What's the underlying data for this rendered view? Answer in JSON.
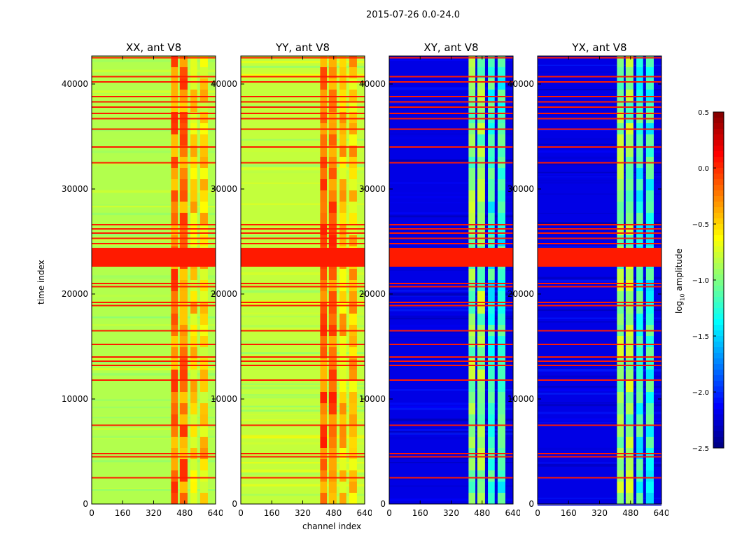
{
  "chart_data": {
    "type": "heatmap",
    "title": "2015-07-26 0.0-24.0",
    "xlabel": "channel index",
    "ylabel": "time index",
    "xlim": [
      0,
      640
    ],
    "ylim": [
      0,
      42667
    ],
    "xticks": [
      "0",
      "160",
      "320",
      "480",
      "640"
    ],
    "yticks": [
      "0",
      "10000",
      "20000",
      "30000",
      "40000"
    ],
    "panels": [
      {
        "title": "XX, ant V8",
        "base_log_amp": -0.85,
        "rfi_log_amp": -0.4
      },
      {
        "title": "YY, ant V8",
        "base_log_amp": -0.8,
        "rfi_log_amp": -0.35
      },
      {
        "title": "XY, ant V8",
        "base_log_amp": -2.2,
        "rfi_log_amp": -1.1
      },
      {
        "title": "YX, ant V8",
        "base_log_amp": -2.2,
        "rfi_log_amp": -1.1
      }
    ],
    "rfi_channel_ranges": [
      [
        410,
        445
      ],
      [
        455,
        495
      ],
      [
        510,
        545
      ],
      [
        560,
        600
      ]
    ],
    "flagged_time_rows": [
      42500,
      40700,
      40200,
      38800,
      38300,
      37800,
      37200,
      36700,
      35700,
      34000,
      32500,
      26600,
      26200,
      25800,
      25300,
      24800,
      21000,
      20700,
      19200,
      18900,
      16500,
      15200,
      14000,
      13600,
      13200,
      11800,
      7500,
      4800,
      4500,
      2500
    ],
    "flagged_time_bands": [
      [
        22600,
        24400
      ]
    ],
    "flag_log_amp": 0.05,
    "colorbar": {
      "label": "log10 amplitude",
      "range": [
        -2.5,
        0.5
      ],
      "ticks": [
        "0.5",
        "0.0",
        "−0.5",
        "−1.0",
        "−1.5",
        "−2.0",
        "−2.5"
      ],
      "colormap": "jet"
    }
  }
}
